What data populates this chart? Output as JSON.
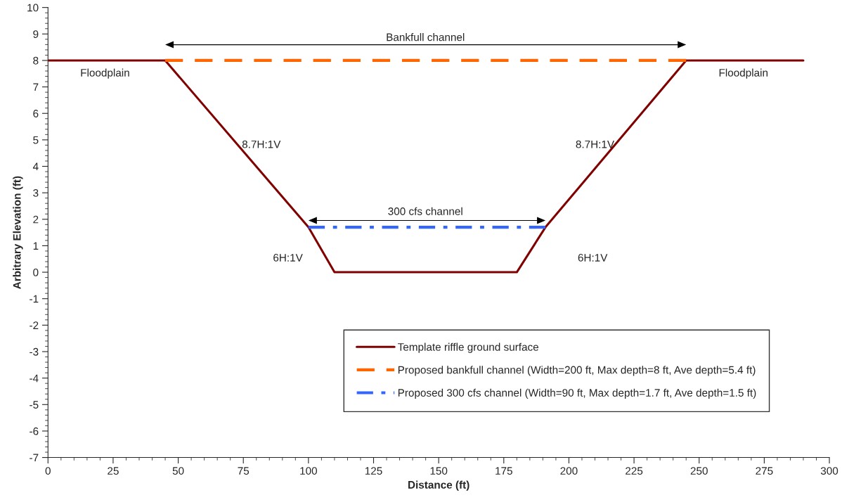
{
  "chart_data": {
    "type": "line",
    "xlabel": "Distance (ft)",
    "ylabel": "Arbitrary Elevation (ft)",
    "xlim": [
      0,
      300
    ],
    "xticks": [
      0,
      25,
      50,
      75,
      100,
      125,
      150,
      175,
      200,
      225,
      250,
      275,
      300
    ],
    "ylim": [
      -7,
      10
    ],
    "yticks": [
      -7,
      -6,
      -5,
      -4,
      -3,
      -2,
      -1,
      0,
      1,
      2,
      3,
      4,
      5,
      6,
      7,
      8,
      9,
      10
    ],
    "grid": false,
    "legend": "bottom right",
    "marker": "none",
    "series": [
      {
        "name": "Template riffle ground surface",
        "color": "#800000",
        "line_style": "solid",
        "x": [
          0,
          45,
          100,
          110,
          180,
          191,
          245,
          290
        ],
        "values": [
          8,
          8,
          1.7,
          0,
          0,
          1.7,
          8,
          8
        ]
      },
      {
        "name": "Proposed bankfull channel (Width=200 ft, Max depth=8 ft, Ave depth=5.4 ft)",
        "color": "#ff6600",
        "line_style": "dashed",
        "x": [
          45,
          245
        ],
        "values": [
          8,
          8
        ]
      },
      {
        "name": "Proposed 300 cfs channel (Width=90 ft, Max depth=1.7 ft, Ave depth=1.5 ft)",
        "color": "#3366ff",
        "line_style": "dashdot",
        "x": [
          100,
          191
        ],
        "values": [
          1.7,
          1.7
        ]
      }
    ],
    "annotations": [
      "Bankfull channel",
      "300 cfs channel",
      "Floodplain",
      "Floodplain",
      "8.7H:1V",
      "8.7H:1V",
      "6H:1V",
      "6H:1V"
    ]
  }
}
